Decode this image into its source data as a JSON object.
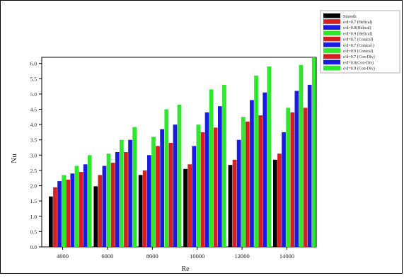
{
  "chart_data": {
    "type": "bar",
    "title": "",
    "xlabel": "Re",
    "ylabel": "Nu",
    "categories": [
      "4000",
      "6000",
      "8000",
      "10000",
      "12000",
      "14000"
    ],
    "ylim": [
      0.0,
      6.2
    ],
    "yticks": [
      "0.0",
      "0.5",
      "1.0",
      "1.5",
      "2.0",
      "2.5",
      "3.0",
      "3.5",
      "4.0",
      "4.5",
      "5.0",
      "5.5",
      "6.0"
    ],
    "grid": false,
    "legend_position": "top-right",
    "series": [
      {
        "name": "Smooth",
        "color": "#000000",
        "values": [
          1.65,
          1.98,
          2.35,
          2.55,
          2.68,
          2.85
        ]
      },
      {
        "name": "e/d=0.7 (Helical)",
        "color": "#d42020",
        "values": [
          1.95,
          2.35,
          2.5,
          2.7,
          2.85,
          3.05
        ]
      },
      {
        "name": "e/d=0.8(Helical)",
        "color": "#1a1ae0",
        "values": [
          2.15,
          2.65,
          3.0,
          3.3,
          3.5,
          3.75
        ]
      },
      {
        "name": "e/d=0.9 (Helical)",
        "color": "#2ee82e",
        "values": [
          2.35,
          3.05,
          3.6,
          4.0,
          4.25,
          4.55
        ]
      },
      {
        "name": "e/d=0.7 (Conical)",
        "color": "#d42020",
        "values": [
          2.2,
          2.75,
          3.3,
          3.75,
          4.1,
          4.4
        ]
      },
      {
        "name": "e/d=0.7 (Conical )",
        "color": "#1a1ae0",
        "values": [
          2.4,
          3.1,
          3.85,
          4.4,
          4.8,
          5.1
        ]
      },
      {
        "name": "e/d=0.9 (Conical)",
        "color": "#2ee82e",
        "values": [
          2.65,
          3.5,
          4.5,
          5.15,
          5.6,
          5.95
        ]
      },
      {
        "name": "e/d=0.7 (Con-Div)",
        "color": "#d42020",
        "values": [
          2.45,
          3.1,
          3.4,
          3.9,
          4.3,
          4.55
        ]
      },
      {
        "name": "e/d=0.8(Con-Div)",
        "color": "#1a1ae0",
        "values": [
          2.7,
          3.5,
          4.0,
          4.6,
          5.05,
          5.3
        ]
      },
      {
        "name": "e/d=0.9 (Con-Div)",
        "color": "#2ee82e",
        "values": [
          3.0,
          3.92,
          4.65,
          5.3,
          5.9,
          6.2
        ]
      }
    ]
  }
}
